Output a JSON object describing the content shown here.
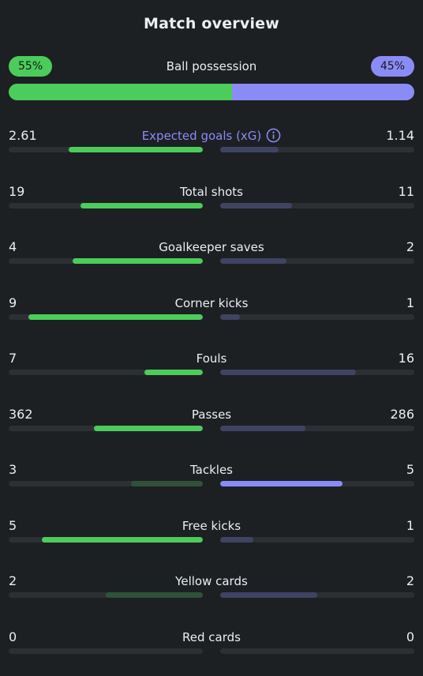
{
  "title": "Match overview",
  "possession": {
    "label": "Ball possession",
    "home": "55%",
    "away": "45%",
    "home_fraction": 0.55
  },
  "colors": {
    "home": "#4ccc5a",
    "home_dim": "#30513a",
    "away": "#8a8cf6",
    "away_dim": "#3e4462",
    "accent": "#8a8cf6"
  },
  "stats": [
    {
      "label": "Expected goals (xG)",
      "home": "2.61",
      "away": "1.14",
      "home_fill": 0.69,
      "away_fill": 0.3,
      "winner": "home",
      "accent": true,
      "icon": "info-icon"
    },
    {
      "label": "Total shots",
      "home": "19",
      "away": "11",
      "home_fill": 0.63,
      "away_fill": 0.37,
      "winner": "home"
    },
    {
      "label": "Goalkeeper saves",
      "home": "4",
      "away": "2",
      "home_fill": 0.67,
      "away_fill": 0.34,
      "winner": "home"
    },
    {
      "label": "Corner kicks",
      "home": "9",
      "away": "1",
      "home_fill": 0.9,
      "away_fill": 0.1,
      "winner": "home"
    },
    {
      "label": "Fouls",
      "home": "7",
      "away": "16",
      "home_fill": 0.3,
      "away_fill": 0.7,
      "winner": "home"
    },
    {
      "label": "Passes",
      "home": "362",
      "away": "286",
      "home_fill": 0.56,
      "away_fill": 0.44,
      "winner": "home"
    },
    {
      "label": "Tackles",
      "home": "3",
      "away": "5",
      "home_fill": 0.37,
      "away_fill": 0.63,
      "winner": "away"
    },
    {
      "label": "Free kicks",
      "home": "5",
      "away": "1",
      "home_fill": 0.83,
      "away_fill": 0.17,
      "winner": "home"
    },
    {
      "label": "Yellow cards",
      "home": "2",
      "away": "2",
      "home_fill": 0.5,
      "away_fill": 0.5,
      "winner": "none"
    },
    {
      "label": "Red cards",
      "home": "0",
      "away": "0",
      "home_fill": 0,
      "away_fill": 0,
      "winner": "none"
    }
  ]
}
